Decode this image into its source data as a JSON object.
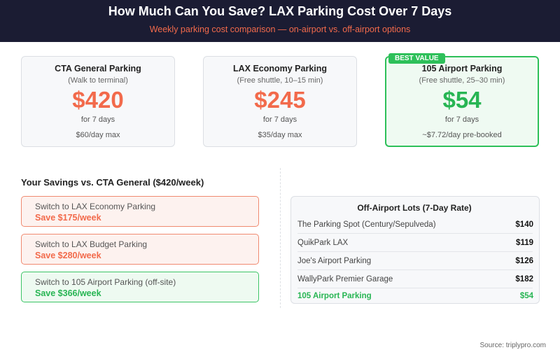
{
  "header": {
    "title": "How Much Can You Save? LAX Parking Cost Over 7 Days",
    "subtitle": "Weekly parking cost comparison — on-airport vs. off-airport options"
  },
  "cards": [
    {
      "name": "CTA General Parking",
      "note": "(Walk to terminal)",
      "price": "$420",
      "period": "for 7 days",
      "rate": "$60/day max"
    },
    {
      "name": "LAX Economy Parking",
      "note": "(Free shuttle, 10–15 min)",
      "price": "$245",
      "period": "for 7 days",
      "rate": "$35/day max"
    },
    {
      "badge": "BEST VALUE",
      "name": "105 Airport Parking",
      "note": "(Free shuttle, 25–30 min)",
      "price": "$54",
      "period": "for 7 days",
      "rate": "~$7.72/day pre-booked"
    }
  ],
  "savings": {
    "title": "Your Savings vs. CTA General ($420/week)",
    "items": [
      {
        "label": "Switch to LAX Economy Parking",
        "save": "Save $175/week"
      },
      {
        "label": "Switch to LAX Budget Parking",
        "save": "Save $280/week"
      },
      {
        "label": "Switch to 105 Airport Parking (off-site)",
        "save": "Save $366/week"
      }
    ]
  },
  "lots": {
    "title": "Off-Airport Lots (7-Day Rate)",
    "rows": [
      [
        "The Parking Spot (Century/Sepulveda)",
        "$140"
      ],
      [
        "QuikPark LAX",
        "$119"
      ],
      [
        "Joe's Airport Parking",
        "$126"
      ],
      [
        "WallyPark Premier Garage",
        "$182"
      ],
      [
        "105 Airport Parking",
        "$54"
      ]
    ]
  },
  "source": "Source: triplypro.com"
}
